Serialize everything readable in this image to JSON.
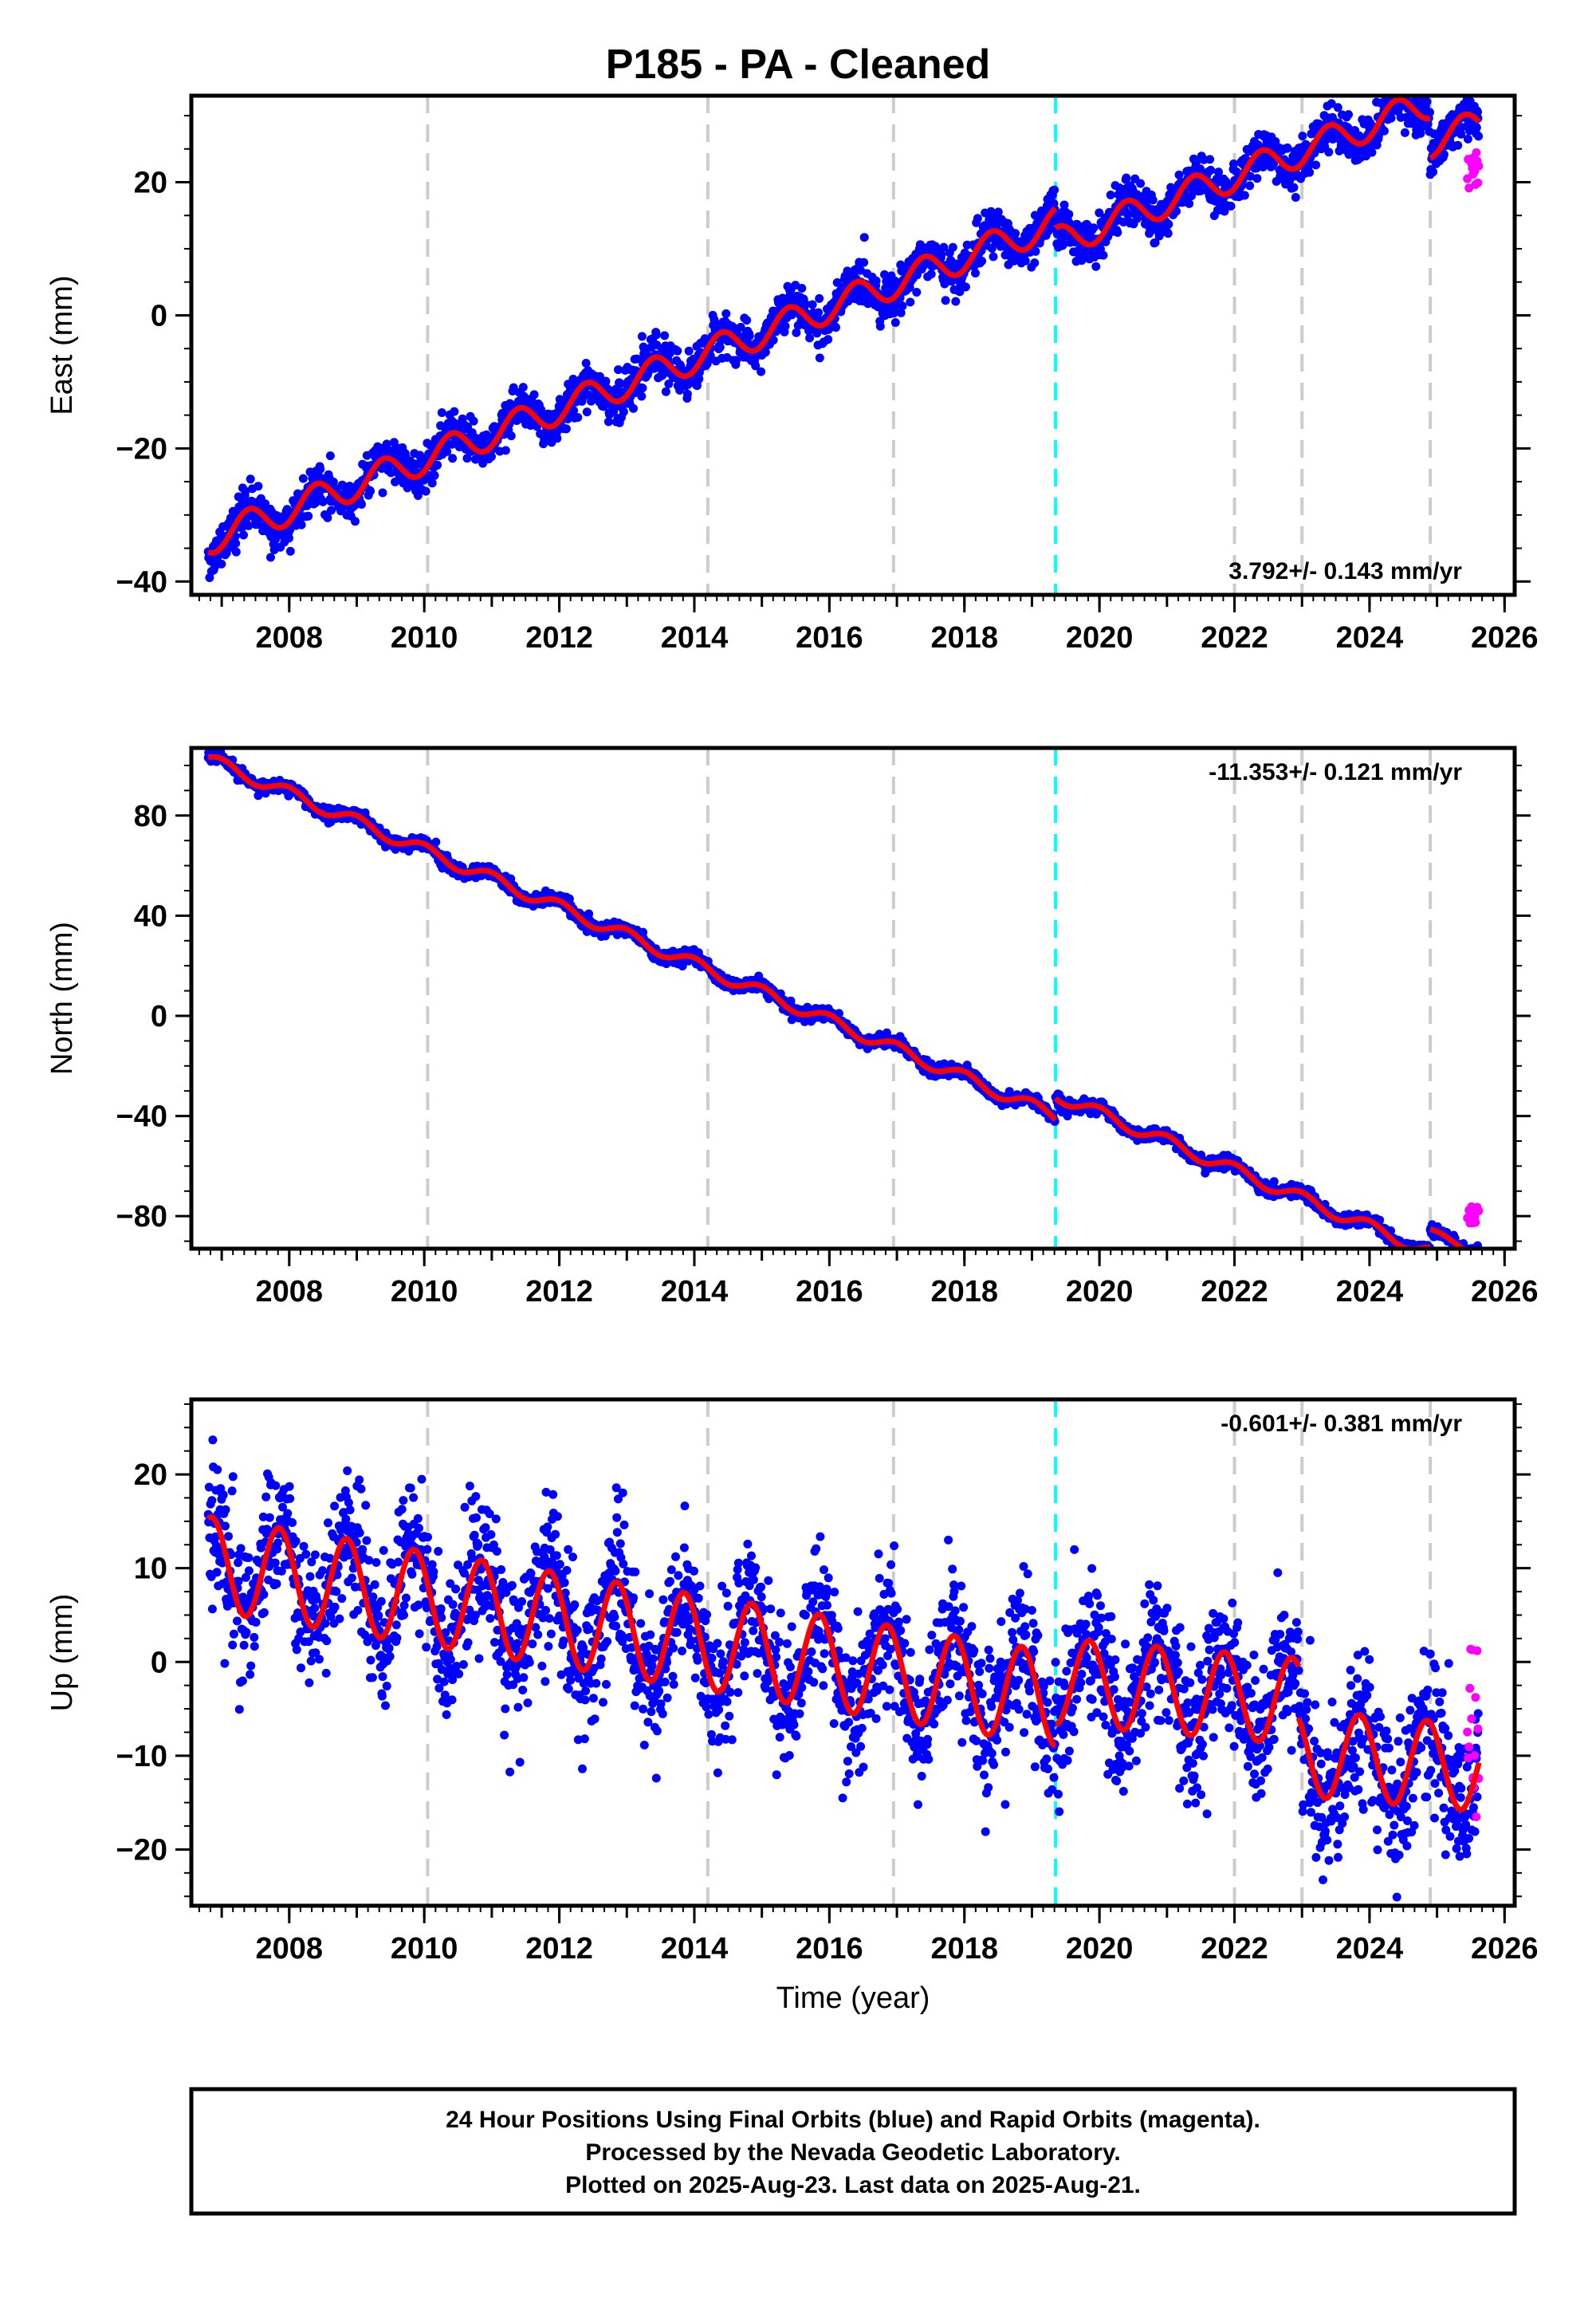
{
  "title": "P185  - PA - Cleaned",
  "colors": {
    "final_orbits": "#0000ff",
    "rapid_orbits": "#ff00ff",
    "model": "#ff0000",
    "event_line": "#cccccc",
    "antenna_change_line": "#00ffff",
    "frame": "#000000"
  },
  "chart_data": [
    {
      "type": "scatter",
      "component": "East",
      "ylabel": "East (mm)",
      "xlabel": "",
      "xlim": [
        2006.55,
        2026.15
      ],
      "ylim": [
        -42,
        33
      ],
      "xticks": [
        2008,
        2010,
        2012,
        2014,
        2016,
        2018,
        2020,
        2022,
        2024,
        2026
      ],
      "yticks": [
        -40,
        -20,
        0,
        20
      ],
      "rate_label": "3.792+/- 0.143 mm/yr",
      "rate_position": "bottom-right",
      "events": [
        2010.05,
        2014.2,
        2016.95,
        2022.0,
        2023.0,
        2024.9
      ],
      "cyan_events": [
        2019.35
      ],
      "model_segments": [
        {
          "from": 2006.8,
          "to": 2019.35,
          "base": -33.7,
          "rate": 3.792,
          "offset": 0,
          "amp": 2.3,
          "phase": 0.6
        },
        {
          "from": 2019.35,
          "to": 2024.9,
          "base": -33.7,
          "rate": 3.792,
          "offset": -3.0,
          "amp": 2.3,
          "phase": 0.6
        },
        {
          "from": 2024.9,
          "to": 2025.62,
          "base": -33.7,
          "rate": 3.792,
          "offset": -9.0,
          "amp": 2.3,
          "phase": 0.6
        }
      ],
      "noise": 1.6,
      "rapid": {
        "from": 2025.45,
        "to": 2025.62,
        "range": [
          18.5,
          26.5
        ]
      }
    },
    {
      "type": "scatter",
      "component": "North",
      "ylabel": "North (mm)",
      "xlabel": "",
      "xlim": [
        2006.55,
        2026.15
      ],
      "ylim": [
        -93,
        107
      ],
      "xticks": [
        2008,
        2010,
        2012,
        2014,
        2016,
        2018,
        2020,
        2022,
        2024,
        2026
      ],
      "yticks": [
        -80,
        -40,
        0,
        40,
        80
      ],
      "rate_label": "-11.353+/- 0.121 mm/yr",
      "rate_position": "top-right",
      "events": [
        2010.05,
        2014.2,
        2016.95,
        2022.0,
        2023.0,
        2024.9
      ],
      "cyan_events": [
        2019.35
      ],
      "model_segments": [
        {
          "from": 2006.8,
          "to": 2019.35,
          "base": 102.5,
          "rate": -11.353,
          "offset": 0,
          "amp": 2.5,
          "phase": 0.2
        },
        {
          "from": 2019.35,
          "to": 2024.9,
          "base": 102.5,
          "rate": -11.353,
          "offset": 8.5,
          "amp": 2.5,
          "phase": 0.2
        },
        {
          "from": 2024.9,
          "to": 2025.62,
          "base": 102.5,
          "rate": -11.353,
          "offset": 16.5,
          "amp": 1.5,
          "phase": 0.2
        }
      ],
      "noise": 1.2,
      "rapid": {
        "from": 2025.45,
        "to": 2025.62,
        "range": [
          -83,
          -76
        ]
      }
    },
    {
      "type": "scatter",
      "component": "Up",
      "ylabel": "Up (mm)",
      "xlabel": "Time (year)",
      "xlim": [
        2006.55,
        2026.15
      ],
      "ylim": [
        -26,
        28
      ],
      "xticks": [
        2008,
        2010,
        2012,
        2014,
        2016,
        2018,
        2020,
        2022,
        2024,
        2026
      ],
      "yticks": [
        -20,
        -10,
        0,
        10,
        20
      ],
      "rate_label": "-0.601+/- 0.381 mm/yr",
      "rate_position": "top-right",
      "events": [
        2010.05,
        2014.2,
        2016.95,
        2022.0,
        2023.0,
        2024.9
      ],
      "cyan_events": [
        2019.35
      ],
      "model_segments": [
        {
          "from": 2006.8,
          "to": 2019.35,
          "base": 11.0,
          "rate": -0.601,
          "offset": -0.5,
          "amp": 5.0,
          "phase": 0.05,
          "trend": -0.55
        },
        {
          "from": 2019.35,
          "to": 2022.95,
          "base": 11.0,
          "rate": -0.601,
          "offset": -5.5,
          "amp": 4.6,
          "phase": 0.05,
          "trend": 0
        },
        {
          "from": 2022.95,
          "to": 2025.62,
          "base": 11.0,
          "rate": -0.601,
          "offset": -11.0,
          "amp": 4.6,
          "phase": 0.05,
          "trend": 0
        }
      ],
      "noise": 3.8,
      "rapid": {
        "from": 2025.45,
        "to": 2025.62,
        "range": [
          -17,
          2
        ]
      }
    }
  ],
  "footer": {
    "line1": "24 Hour Positions Using Final Orbits (blue) and Rapid Orbits (magenta).",
    "line2": "Processed by the Nevada Geodetic Laboratory.",
    "line3": "Plotted on 2025-Aug-23. Last data on 2025-Aug-21."
  }
}
